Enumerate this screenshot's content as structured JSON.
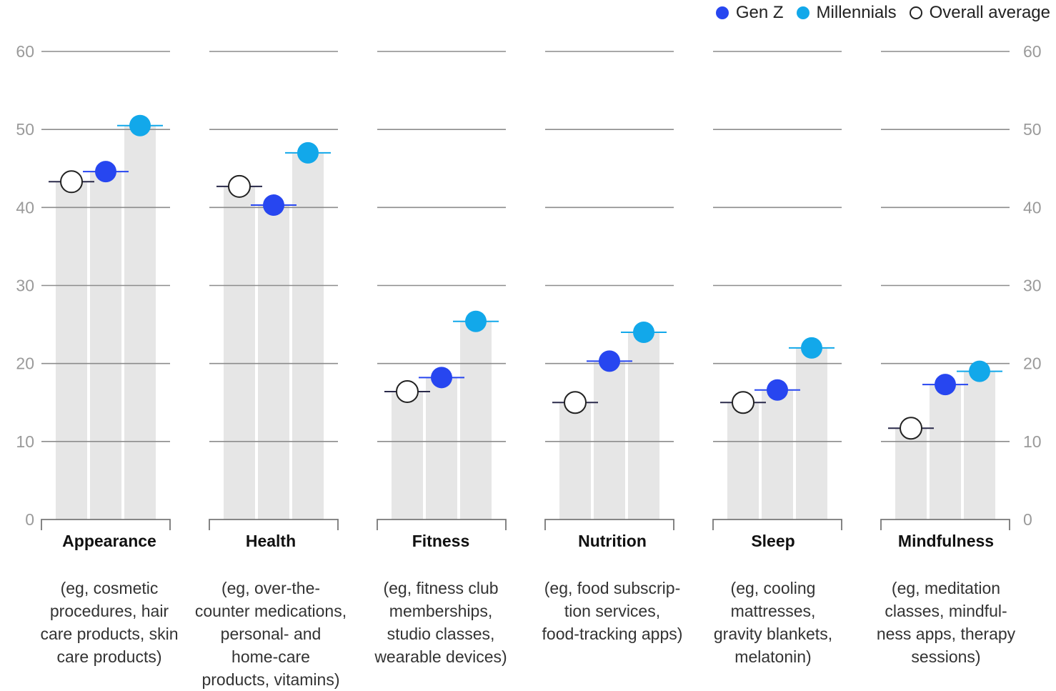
{
  "chart_data": {
    "type": "bar",
    "title": "",
    "ylim": [
      0,
      60
    ],
    "yticks": [
      "0",
      "10",
      "20",
      "30",
      "40",
      "50",
      "60"
    ],
    "grid": true,
    "legend_position": "top-right",
    "series": [
      {
        "name": "Overall average",
        "color": "#ffffff",
        "values": [
          43.3,
          42.7,
          16.4,
          15.0,
          15.0,
          11.7
        ]
      },
      {
        "name": "Gen Z",
        "color": "#2746f0",
        "values": [
          44.6,
          40.3,
          18.2,
          20.3,
          16.6,
          17.3
        ]
      },
      {
        "name": "Millennials",
        "color": "#12a8ea",
        "values": [
          50.5,
          47.0,
          25.4,
          24.0,
          22.0,
          19.0
        ]
      }
    ],
    "legend_order": [
      "Gen Z",
      "Millennials",
      "Overall average"
    ],
    "categories": [
      {
        "label": "Appearance",
        "desc": [
          "(eg, cosmetic",
          "procedures, hair",
          "care products, skin",
          "care products)"
        ]
      },
      {
        "label": "Health",
        "desc": [
          "(eg, over-the-",
          "counter medications,",
          "personal- and",
          "home-care",
          "products, vitamins)"
        ]
      },
      {
        "label": "Fitness",
        "desc": [
          "(eg, fitness club",
          "memberships,",
          "studio classes,",
          "wearable devices)"
        ]
      },
      {
        "label": "Nutrition",
        "desc": [
          "(eg, food subscrip-",
          "tion services,",
          "food-tracking apps)"
        ]
      },
      {
        "label": "Sleep",
        "desc": [
          "(eg, cooling",
          "mattresses,",
          "gravity blankets,",
          "melatonin)"
        ]
      },
      {
        "label": "Mindfulness",
        "desc": [
          "(eg, meditation",
          "classes, mindful-",
          "ness apps, therapy",
          "sessions)"
        ]
      }
    ],
    "colors": {
      "bar": "#e6e6e6",
      "grid": "#8c8c8c",
      "axis": "#777777",
      "tick_text": "#9a9a9a",
      "marker_stroke": "#222222"
    }
  }
}
